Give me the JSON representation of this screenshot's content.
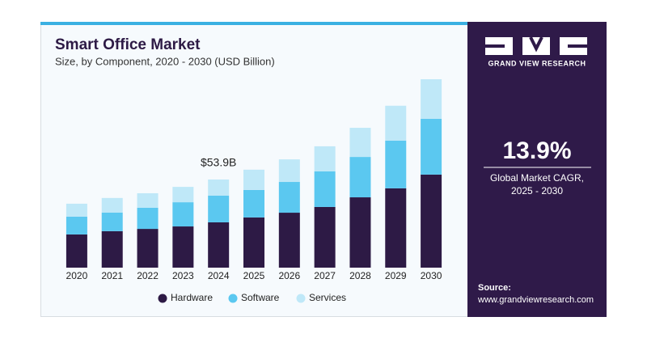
{
  "chart_data": {
    "type": "stacked-bar",
    "title": "Smart Office Market",
    "subtitle": "Size, by Component, 2020 - 2030 (USD Billion)",
    "categories": [
      "2020",
      "2021",
      "2022",
      "2023",
      "2024",
      "2025",
      "2026",
      "2027",
      "2028",
      "2029",
      "2030"
    ],
    "series": [
      {
        "name": "Hardware",
        "color": "#2d1a45",
        "values": [
          20.3,
          22.3,
          23.7,
          25.2,
          27.7,
          30.7,
          33.6,
          37.1,
          43.0,
          48.5,
          56.9
        ]
      },
      {
        "name": "Software",
        "color": "#5bc8f0",
        "values": [
          10.9,
          11.4,
          12.9,
          14.8,
          16.3,
          16.8,
          18.8,
          21.8,
          24.7,
          29.2,
          34.1
        ]
      },
      {
        "name": "Services",
        "color": "#bfe8f8",
        "values": [
          7.9,
          8.9,
          8.9,
          9.4,
          9.9,
          12.4,
          13.8,
          15.3,
          17.8,
          21.3,
          24.2
        ]
      }
    ],
    "annotation": {
      "category": "2024",
      "value": 53.9,
      "label": "$53.9B"
    },
    "legend": "bottom"
  },
  "side_panel": {
    "brand": "GRAND VIEW RESEARCH",
    "cagr": "13.9%",
    "cagr_caption": [
      "Global Market CAGR,",
      "2025 - 2030"
    ],
    "source_label": "Source:",
    "source_url": "www.grandviewresearch.com"
  }
}
